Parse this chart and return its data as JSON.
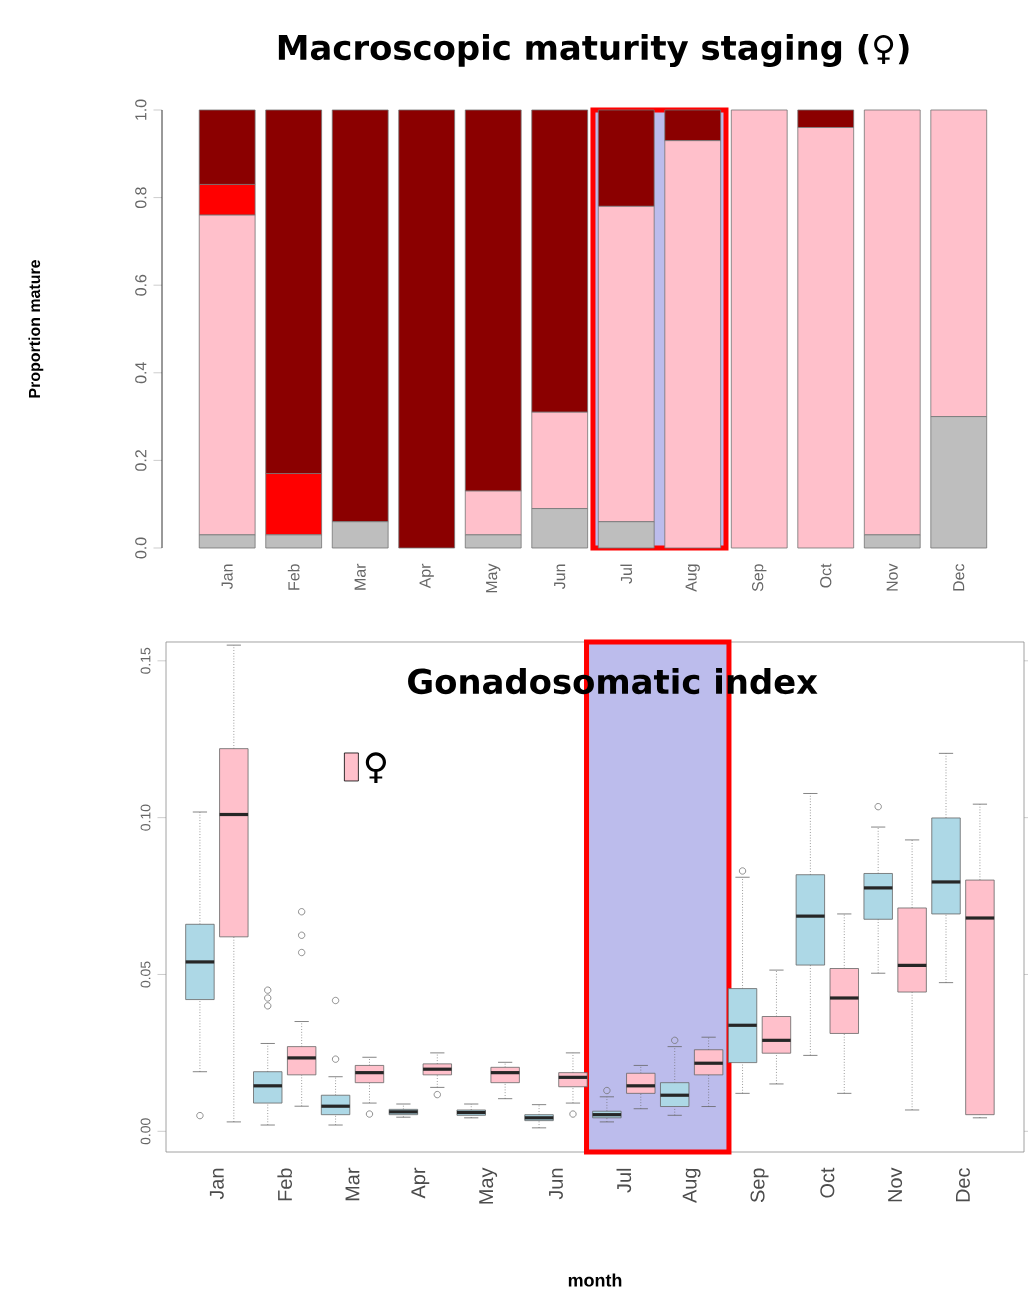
{
  "chart_data": [
    {
      "type": "bar",
      "title": "Macroscopic maturity staging (♀)",
      "ylabel": "Proportion mature",
      "stacked": true,
      "categories": [
        "Jan",
        "Feb",
        "Mar",
        "Apr",
        "May",
        "Jun",
        "Jul",
        "Aug",
        "Sep",
        "Oct",
        "Nov",
        "Dec"
      ],
      "series": [
        {
          "color": "#bebebe",
          "values": [
            0.03,
            0.03,
            0.06,
            0,
            0.03,
            0.09,
            0.06,
            0,
            0,
            0,
            0.03,
            0.3
          ]
        },
        {
          "color": "#ffc0cb",
          "values": [
            0.73,
            0,
            0,
            0,
            0.1,
            0.22,
            0.72,
            0.93,
            1,
            0.96,
            0.97,
            0.7
          ]
        },
        {
          "color": "#ff0000",
          "values": [
            0.07,
            0.14,
            0,
            0,
            0,
            0,
            0,
            0,
            0,
            0,
            0,
            0
          ]
        },
        {
          "color": "#8b0000",
          "values": [
            0.17,
            0.83,
            0.94,
            1,
            0.87,
            0.69,
            0.22,
            0.07,
            0,
            0.04,
            0,
            0
          ]
        }
      ],
      "ylim": [
        0,
        1
      ],
      "yticks": [
        {
          "value": 0,
          "label": "0.0"
        },
        {
          "value": 0.2,
          "label": "0.2"
        },
        {
          "value": 0.4,
          "label": "0.4"
        },
        {
          "value": 0.6,
          "label": "0.6"
        },
        {
          "value": 0.8,
          "label": "0.8"
        },
        {
          "value": 1,
          "label": "1.0"
        }
      ],
      "bands": [
        {
          "axis": "x",
          "from": "Jul",
          "to": "Aug",
          "color": "#bcbcec"
        }
      ]
    },
    {
      "type": "box",
      "title": "Gonadosomatic index",
      "xlabel": "month",
      "legend": "top left",
      "categories": [
        "Jan",
        "Feb",
        "Mar",
        "Apr",
        "May",
        "Jun",
        "Jul",
        "Aug",
        "Sep",
        "Oct",
        "Nov",
        "Dec"
      ],
      "series": [
        {
          "color": "#add8e6",
          "boxes": [
            {
              "low": 0.019,
              "q1": 0.042,
              "median": 0.054,
              "q3": 0.066,
              "high": 0.1018,
              "outliers": [
                0.005
              ]
            },
            {
              "low": 0.002,
              "q1": 0.009,
              "median": 0.0145,
              "q3": 0.019,
              "high": 0.028,
              "outliers": [
                0.04,
                0.0425,
                0.045
              ]
            },
            {
              "low": 0.002,
              "q1": 0.0053,
              "median": 0.008,
              "q3": 0.0115,
              "high": 0.0174,
              "outliers": [
                0.023,
                0.0417
              ]
            },
            {
              "low": 0.0045,
              "q1": 0.0053,
              "median": 0.0062,
              "q3": 0.007,
              "high": 0.0087
            },
            {
              "low": 0.0043,
              "q1": 0.0051,
              "median": 0.006,
              "q3": 0.0068,
              "high": 0.0087
            },
            {
              "low": 0.0011,
              "q1": 0.0034,
              "median": 0.0043,
              "q3": 0.0053,
              "high": 0.0085
            },
            {
              "low": 0.003,
              "q1": 0.0043,
              "median": 0.0053,
              "q3": 0.0064,
              "high": 0.011,
              "outliers": [
                0.013
              ]
            },
            {
              "low": 0.0051,
              "q1": 0.0079,
              "median": 0.0115,
              "q3": 0.0155,
              "high": 0.027,
              "outliers": [
                0.029
              ]
            },
            {
              "low": 0.0121,
              "q1": 0.0219,
              "median": 0.0338,
              "q3": 0.0455,
              "high": 0.081,
              "outliers": [
                0.083
              ]
            },
            {
              "low": 0.0242,
              "q1": 0.053,
              "median": 0.0686,
              "q3": 0.0818,
              "high": 0.1077
            },
            {
              "low": 0.0504,
              "q1": 0.0676,
              "median": 0.0776,
              "q3": 0.0822,
              "high": 0.097,
              "outliers": [
                0.1035
              ]
            },
            {
              "low": 0.0474,
              "q1": 0.0693,
              "median": 0.0795,
              "q3": 0.0999,
              "high": 0.1205
            }
          ]
        },
        {
          "name": "♀",
          "color": "#ffc0cb",
          "boxes": [
            {
              "low": 0.003,
              "q1": 0.062,
              "median": 0.101,
              "q3": 0.122,
              "high": 0.155
            },
            {
              "low": 0.008,
              "q1": 0.018,
              "median": 0.0234,
              "q3": 0.027,
              "high": 0.035,
              "outliers": [
                0.057,
                0.0625,
                0.07
              ]
            },
            {
              "low": 0.009,
              "q1": 0.0155,
              "median": 0.0187,
              "q3": 0.021,
              "high": 0.0236,
              "outliers": [
                0.0055
              ]
            },
            {
              "low": 0.014,
              "q1": 0.018,
              "median": 0.0198,
              "q3": 0.0215,
              "high": 0.025,
              "outliers": [
                0.0117
              ]
            },
            {
              "low": 0.0104,
              "q1": 0.0155,
              "median": 0.0187,
              "q3": 0.0204,
              "high": 0.022
            },
            {
              "low": 0.009,
              "q1": 0.0142,
              "median": 0.0172,
              "q3": 0.0187,
              "high": 0.025,
              "outliers": [
                0.0055
              ]
            },
            {
              "low": 0.0072,
              "q1": 0.0121,
              "median": 0.0145,
              "q3": 0.0185,
              "high": 0.021
            },
            {
              "low": 0.0079,
              "q1": 0.018,
              "median": 0.0217,
              "q3": 0.026,
              "high": 0.03
            },
            {
              "low": 0.0151,
              "q1": 0.0249,
              "median": 0.029,
              "q3": 0.0366,
              "high": 0.0514
            },
            {
              "low": 0.0121,
              "q1": 0.0312,
              "median": 0.0425,
              "q3": 0.0519,
              "high": 0.0693
            },
            {
              "low": 0.0068,
              "q1": 0.0444,
              "median": 0.0529,
              "q3": 0.0712,
              "high": 0.0929
            },
            {
              "low": 0.0043,
              "q1": 0.0053,
              "median": 0.068,
              "q3": 0.0801,
              "high": 0.1043
            }
          ]
        }
      ],
      "ylim": [
        -0.0066,
        0.156
      ],
      "yticks": [
        {
          "value": 0,
          "label": "0.00"
        },
        {
          "value": 0.05,
          "label": "0.05"
        },
        {
          "value": 0.1,
          "label": "0.10"
        },
        {
          "value": 0.15,
          "label": "0.15"
        }
      ],
      "bands": [
        {
          "axis": "x",
          "from": "Jul",
          "to": "Aug",
          "color": "#bcbcec"
        }
      ]
    }
  ]
}
